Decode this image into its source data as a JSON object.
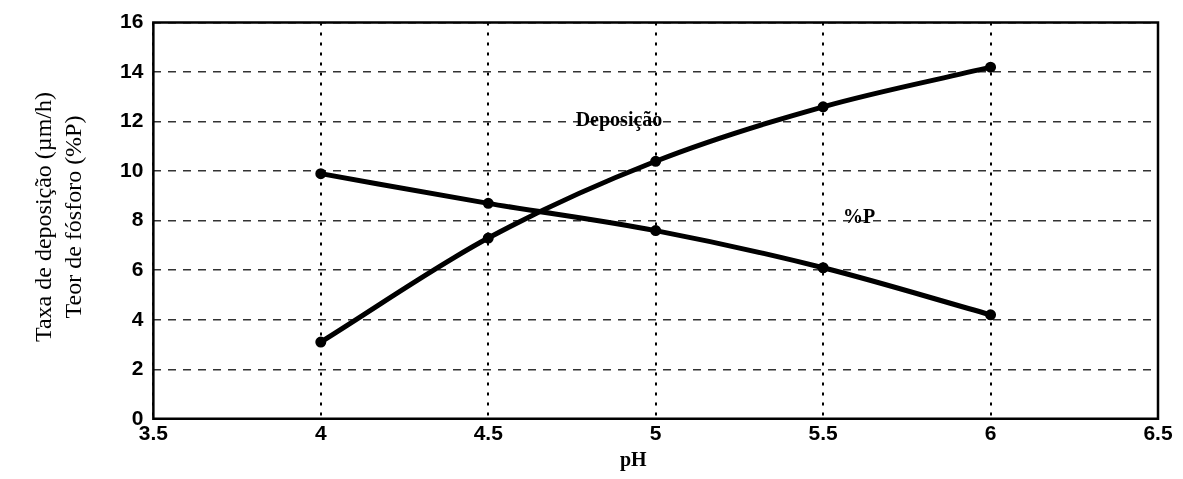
{
  "chart_data": {
    "type": "line",
    "xlabel": "pH",
    "ylabel": "Taxa de deposição (µm/h)\nTeor de fósforo (%P)",
    "x": [
      4,
      4.5,
      5,
      5.5,
      6
    ],
    "series": [
      {
        "name": "Deposição",
        "color": "#000000",
        "values": [
          3.1,
          7.3,
          10.4,
          12.6,
          14.2
        ]
      },
      {
        "name": "%P",
        "color": "#000000",
        "values": [
          9.9,
          8.7,
          7.6,
          6.1,
          4.2
        ]
      }
    ],
    "xlim": [
      3.5,
      6.5
    ],
    "xticks": [
      3.5,
      4,
      4.5,
      5,
      5.5,
      6,
      6.5
    ],
    "ylim": [
      0,
      16
    ],
    "yticks": [
      0,
      2,
      4,
      6,
      8,
      10,
      12,
      14,
      16
    ],
    "grid": true,
    "legend": false,
    "marker": "circle",
    "line_style": "solid"
  }
}
